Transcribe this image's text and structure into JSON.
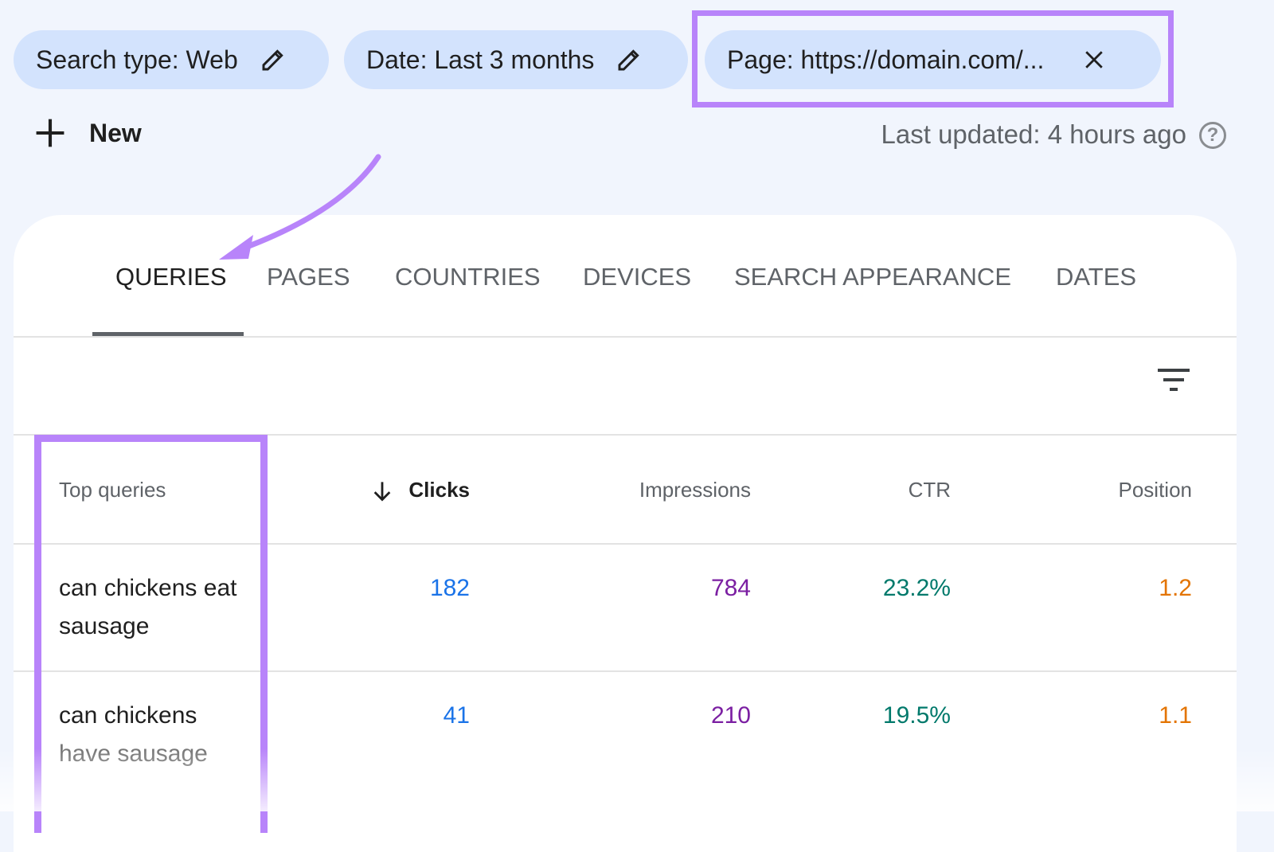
{
  "filters": {
    "search_type": "Search type: Web",
    "date": "Date: Last 3 months",
    "page": "Page: https://domain.com/..."
  },
  "new_label": "New",
  "last_updated": "Last updated: 4 hours ago",
  "help_glyph": "?",
  "tabs": [
    "QUERIES",
    "PAGES",
    "COUNTRIES",
    "DEVICES",
    "SEARCH APPEARANCE",
    "DATES"
  ],
  "active_tab": "QUERIES",
  "table": {
    "headers": [
      "Top queries",
      "Clicks",
      "Impressions",
      "CTR",
      "Position"
    ],
    "sorted_by": "Clicks",
    "rows": [
      {
        "query_line1": "can chickens eat",
        "query_line2": "sausage",
        "clicks": "182",
        "impressions": "784",
        "ctr": "23.2%",
        "position": "1.2"
      },
      {
        "query_line1": "can chickens",
        "query_line2": "have sausage",
        "clicks": "41",
        "impressions": "210",
        "ctr": "19.5%",
        "position": "1.1"
      }
    ]
  },
  "colors": {
    "clicks": "#1a73e8",
    "impressions": "#7b1fa2",
    "ctr": "#00796b",
    "position": "#e37400",
    "highlight": "#b884fa",
    "chip": "#d3e3fd"
  }
}
